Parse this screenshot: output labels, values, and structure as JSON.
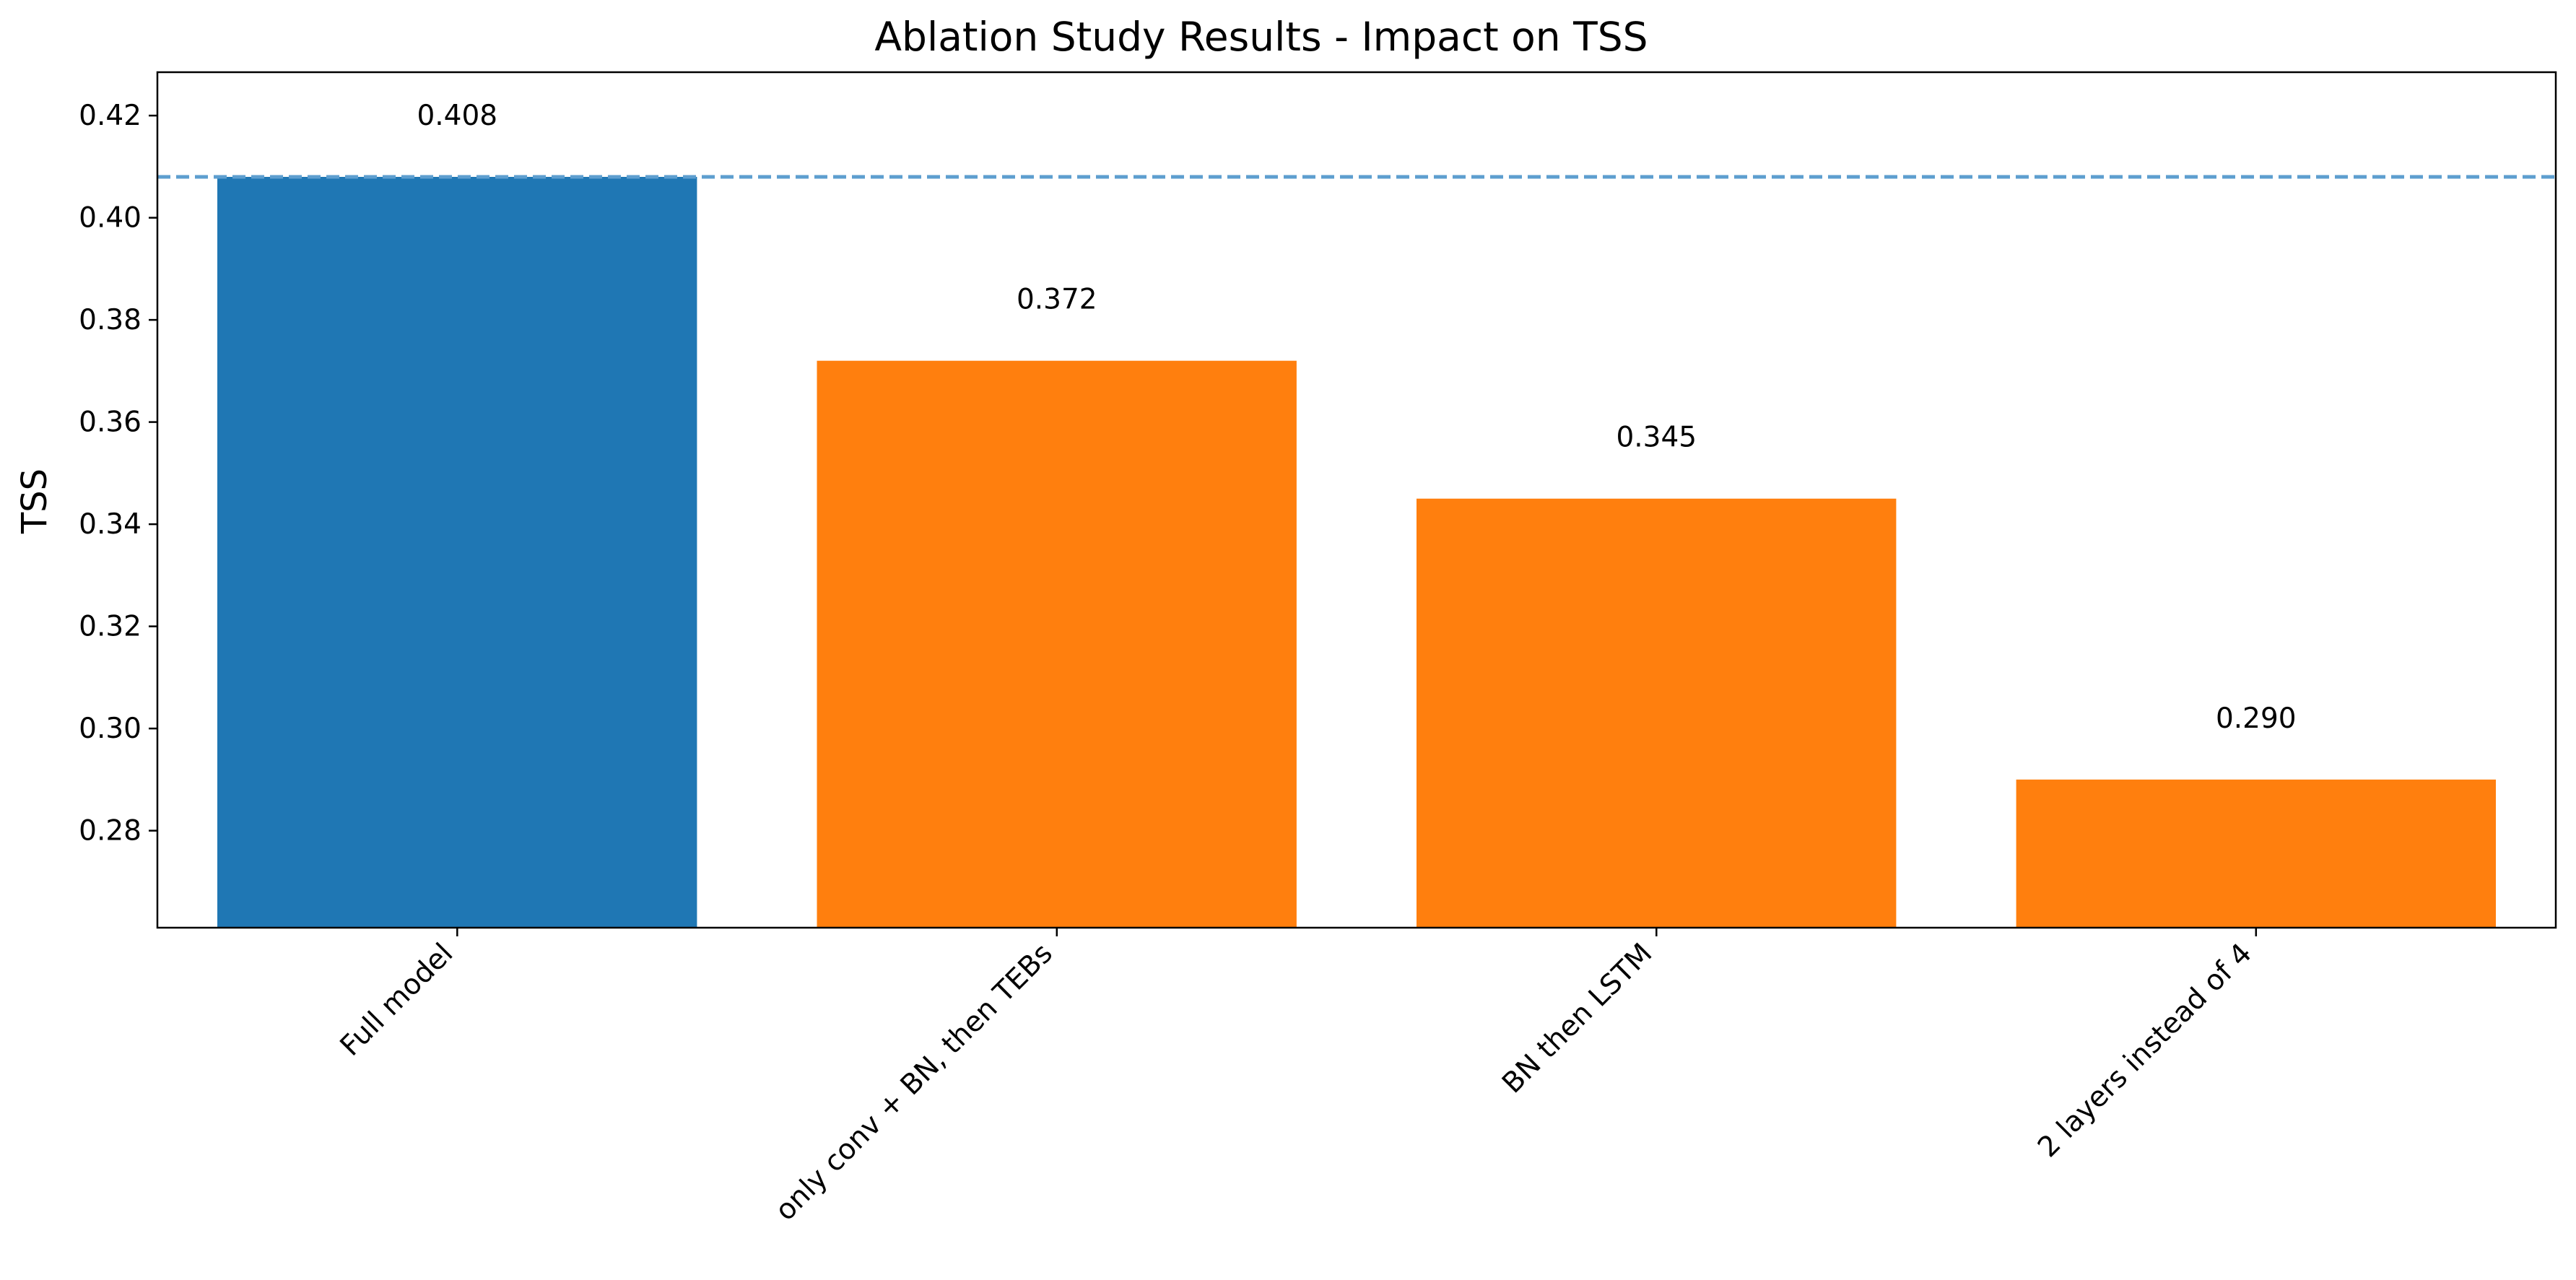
{
  "chart_data": {
    "type": "bar",
    "title": "Ablation Study Results - Impact on TSS",
    "xlabel": "",
    "ylabel": "TSS",
    "categories": [
      "Full model",
      "only conv + BN, then TEBs",
      "BN then LSTM",
      "2 layers instead of 4"
    ],
    "values": [
      0.408,
      0.372,
      0.345,
      0.29
    ],
    "data_labels": [
      "0.408",
      "0.372",
      "0.345",
      "0.290"
    ],
    "bar_colors": [
      "#1f77b4",
      "#ff7f0e",
      "#ff7f0e",
      "#ff7f0e"
    ],
    "ylim": [
      0.261,
      0.4285
    ],
    "yticks": [
      0.28,
      0.3,
      0.32,
      0.34,
      0.36,
      0.38,
      0.4,
      0.42
    ],
    "ytick_labels": [
      "0.28",
      "0.30",
      "0.32",
      "0.34",
      "0.36",
      "0.38",
      "0.40",
      "0.42"
    ],
    "reference_line": {
      "value": 0.408,
      "style": "dashed",
      "color": "#5d9ecf"
    },
    "grid": false,
    "legend": null,
    "xtick_rotation": 45
  }
}
